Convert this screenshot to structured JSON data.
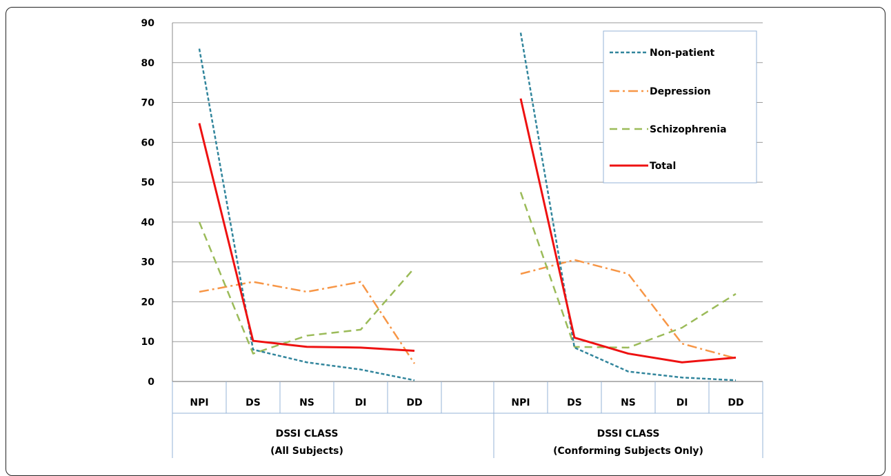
{
  "chart_data": {
    "type": "line",
    "ylim": [
      0,
      90
    ],
    "yticks": [
      0,
      10,
      20,
      30,
      40,
      50,
      60,
      70,
      80,
      90
    ],
    "grid": true,
    "legend_position": "top-right",
    "groups": [
      {
        "label_line1": "DSSI CLASS",
        "label_line2": "(All Subjects)",
        "categories": [
          "NPI",
          "DS",
          "NS",
          "DI",
          "DD"
        ],
        "series": [
          {
            "name": "Non-patient",
            "values": [
              83.5,
              8.0,
              4.8,
              3.0,
              0.3
            ]
          },
          {
            "name": "Depression",
            "values": [
              22.5,
              25.0,
              22.5,
              25.0,
              4.5
            ]
          },
          {
            "name": "Schizophrenia",
            "values": [
              40.0,
              7.0,
              11.5,
              13.0,
              28.5
            ]
          },
          {
            "name": "Total",
            "values": [
              64.8,
              10.2,
              8.7,
              8.5,
              7.7
            ]
          }
        ]
      },
      {
        "label_line1": "DSSI CLASS",
        "label_line2": "(Conforming Subjects Only)",
        "categories": [
          "NPI",
          "DS",
          "NS",
          "DI",
          "DD"
        ],
        "series": [
          {
            "name": "Non-patient",
            "values": [
              87.5,
              8.5,
              2.5,
              1.0,
              0.3
            ]
          },
          {
            "name": "Depression",
            "values": [
              27.0,
              30.5,
              27.0,
              9.5,
              5.8
            ]
          },
          {
            "name": "Schizophrenia",
            "values": [
              47.5,
              8.7,
              8.5,
              13.5,
              22.0
            ]
          },
          {
            "name": "Total",
            "values": [
              71.0,
              11.0,
              7.0,
              4.8,
              6.0
            ]
          }
        ]
      }
    ],
    "legend": [
      {
        "name": "Non-patient",
        "color": "#31859c",
        "style": "dashed"
      },
      {
        "name": "Depression",
        "color": "#f79646",
        "style": "dash-dot"
      },
      {
        "name": "Schizophrenia",
        "color": "#9bbb59",
        "style": "long-dash"
      },
      {
        "name": "Total",
        "color": "#ee1111",
        "style": "solid"
      }
    ]
  }
}
